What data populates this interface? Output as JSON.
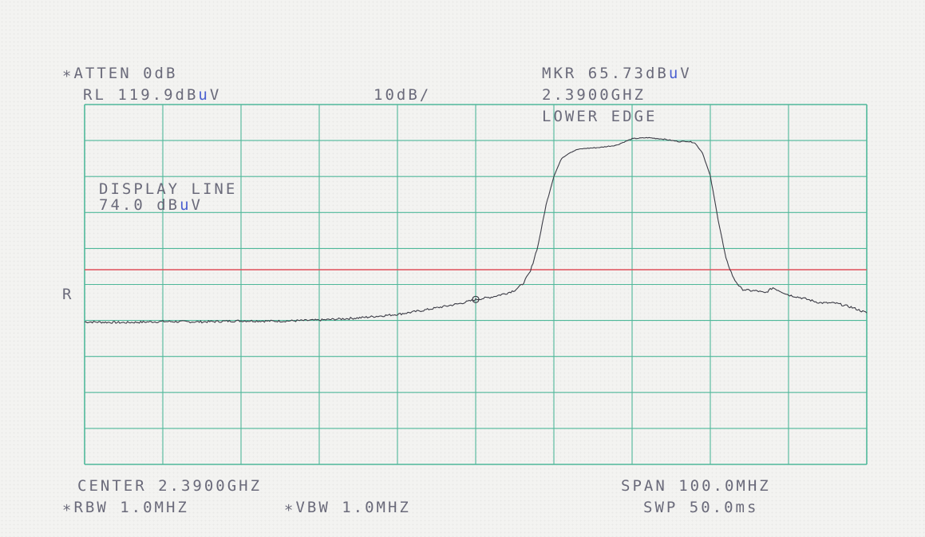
{
  "header": {
    "atten": "∗ATTEN 0dB",
    "rl_prefix": "RL 119.9dB",
    "rl_unit": "u",
    "rl_suffix": "V",
    "scale": "10dB/",
    "mkr_prefix": "MKR 65.73dB",
    "mkr_unit": "u",
    "mkr_suffix": "V",
    "mkr_freq": "2.3900GHZ",
    "mkr_note": "LOWER EDGE"
  },
  "display_line": {
    "title": "DISPLAY LINE",
    "value_prefix": "74.0 dB",
    "value_unit": "u",
    "value_suffix": "V"
  },
  "side_marker": "R",
  "footer": {
    "center": "CENTER 2.3900GHZ",
    "span": "SPAN 100.0MHZ",
    "rbw": "∗RBW 1.0MHZ",
    "vbw": "∗VBW 1.0MHZ",
    "swp": "SWP 50.0ms"
  },
  "colors": {
    "grid": "#4fb89a",
    "trace": "#3c3c46",
    "display_line": "#e0505a",
    "text": "#6a6a7a",
    "unit_mu": "#4a5fd0"
  },
  "chart_data": {
    "type": "line",
    "x_unit": "MHz",
    "y_unit": "dBuV",
    "xlim": [
      2340,
      2440
    ],
    "ylim": [
      19.9,
      119.9
    ],
    "grid": true,
    "display_line_value": 74.0,
    "marker": {
      "x": 2390,
      "y": 65.73
    },
    "series": [
      {
        "x": [
          2340,
          2345,
          2350,
          2355,
          2360,
          2365,
          2370,
          2375,
          2380,
          2383,
          2386,
          2388,
          2390,
          2392,
          2394,
          2395,
          2396,
          2397,
          2398,
          2399,
          2400,
          2401,
          2402,
          2403,
          2404,
          2406,
          2408,
          2410,
          2412,
          2414,
          2416,
          2417,
          2418,
          2419,
          2420,
          2421,
          2422,
          2423,
          2424,
          2425,
          2426,
          2427,
          2428,
          2430,
          2432,
          2434,
          2436,
          2438,
          2440
        ],
        "y": [
          59.5,
          59.3,
          59.6,
          59.5,
          59.8,
          59.7,
          60.0,
          60.6,
          61.6,
          62.6,
          63.8,
          64.6,
          65.7,
          66.4,
          67.5,
          68.3,
          70.0,
          73.5,
          81.0,
          92.0,
          100.0,
          105.0,
          106.5,
          107.4,
          107.7,
          108.0,
          108.6,
          110.4,
          110.7,
          110.3,
          109.6,
          109.7,
          109.3,
          106.5,
          100.0,
          88.0,
          77.0,
          71.5,
          68.6,
          68.2,
          68.1,
          67.5,
          69.0,
          67.0,
          66.0,
          64.8,
          64.7,
          63.6,
          62.0
        ]
      }
    ]
  }
}
